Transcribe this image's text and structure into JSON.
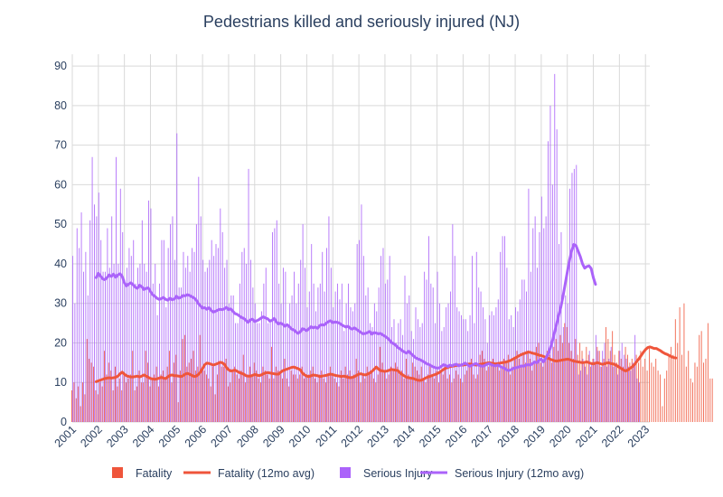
{
  "chart_data": {
    "type": "bar",
    "title": "Pedestrians killed and seriously injured (NJ)",
    "xlabel": "",
    "ylabel": "",
    "x_range": [
      "2001-01",
      "2023-03"
    ],
    "ylim": [
      0,
      93
    ],
    "y_ticks": [
      0,
      10,
      20,
      30,
      40,
      50,
      60,
      70,
      80,
      90
    ],
    "x_ticks": [
      "2001",
      "2002",
      "2003",
      "2004",
      "2005",
      "2006",
      "2007",
      "2008",
      "2009",
      "2010",
      "2011",
      "2012",
      "2013",
      "2014",
      "2015",
      "2016",
      "2017",
      "2018",
      "2019",
      "2020",
      "2021",
      "2022",
      "2023"
    ],
    "grid": true,
    "legend_position": "bottom",
    "series": [
      {
        "name": "Fatality",
        "kind": "bar",
        "color": "#ef553b",
        "start": "2001-01",
        "values": [
          8,
          10,
          6,
          9,
          4,
          10,
          7,
          21,
          16,
          15,
          14,
          8,
          7,
          10,
          9,
          18,
          12,
          15,
          13,
          8,
          14,
          9,
          11,
          8,
          12,
          10,
          11,
          12,
          18,
          8,
          9,
          13,
          10,
          10,
          18,
          15,
          9,
          11,
          12,
          14,
          9,
          12,
          13,
          11,
          14,
          18,
          10,
          15,
          17,
          5,
          13,
          21,
          22,
          14,
          15,
          16,
          18,
          13,
          14,
          22,
          14,
          13,
          12,
          11,
          9,
          14,
          7,
          12,
          15,
          14,
          14,
          16,
          9,
          10,
          13,
          14,
          12,
          11,
          13,
          17,
          10,
          12,
          14,
          12,
          15,
          13,
          11,
          10,
          14,
          13,
          12,
          11,
          19,
          11,
          14,
          13,
          12,
          11,
          16,
          11,
          9,
          13,
          12,
          12,
          11,
          12,
          14,
          11,
          12,
          12,
          13,
          14,
          11,
          10,
          12,
          13,
          11,
          10,
          12,
          14,
          12,
          11,
          10,
          9,
          13,
          11,
          14,
          12,
          13,
          11,
          12,
          16,
          13,
          10,
          12,
          11,
          14,
          12,
          13,
          11,
          10,
          12,
          19,
          15,
          13,
          11,
          12,
          14,
          13,
          15,
          14,
          12,
          13,
          11,
          16,
          12,
          11,
          15,
          14,
          13,
          12,
          14,
          11,
          10,
          12,
          14,
          12,
          11,
          13,
          10,
          13,
          12,
          14,
          11,
          12,
          10,
          11,
          13,
          12,
          11,
          10,
          12,
          13,
          14,
          16,
          12,
          11,
          12,
          17,
          18,
          16,
          13,
          14,
          15,
          16,
          14,
          15,
          13,
          14,
          16,
          15,
          17,
          12,
          14,
          16,
          18,
          16,
          14,
          17,
          15,
          18,
          16,
          13,
          15,
          19,
          20,
          15,
          14,
          16,
          18,
          17,
          15,
          19,
          21,
          18,
          22,
          20,
          25,
          24,
          20,
          18,
          16,
          21,
          17,
          20,
          18,
          15,
          19,
          17,
          14,
          16,
          15,
          19,
          18,
          14,
          16,
          24,
          21,
          18,
          23,
          17,
          15,
          18,
          16,
          14,
          19,
          17,
          15,
          16,
          14,
          17,
          15,
          18,
          14,
          16,
          13,
          19,
          15,
          14,
          16,
          13,
          12,
          4,
          11,
          13,
          17,
          19,
          17,
          26,
          20,
          29,
          17,
          30,
          14,
          18,
          11,
          10,
          15,
          14,
          22,
          23,
          15,
          16,
          25,
          11,
          11
        ]
      },
      {
        "name": "Fatality (12mo avg)",
        "kind": "line",
        "color": "#ef553b",
        "start": "2001-12",
        "values": [
          10.2,
          10.4,
          10.6,
          10.8,
          11.0,
          11.1,
          11.2,
          11.1,
          11.2,
          11.3,
          11.6,
          12.2,
          12.6,
          12.1,
          11.7,
          11.5,
          11.4,
          11.4,
          11.5,
          11.6,
          11.4,
          11.6,
          11.9,
          11.6,
          11.3,
          11.0,
          10.9,
          10.8,
          10.9,
          11.1,
          11.3,
          11.1,
          11.0,
          11.4,
          11.8,
          11.9,
          11.7,
          11.7,
          11.6,
          11.5,
          11.7,
          12.1,
          12.3,
          12.1,
          11.8,
          11.5,
          11.6,
          12.0,
          12.6,
          13.5,
          14.5,
          14.9,
          14.8,
          14.6,
          14.4,
          14.6,
          14.8,
          15.1,
          15.0,
          14.6,
          13.8,
          13.2,
          12.9,
          13.0,
          13.1,
          12.8,
          12.5,
          12.3,
          12.1,
          11.7,
          11.6,
          11.6,
          11.8,
          12.0,
          11.9,
          11.7,
          11.9,
          12.2,
          12.4,
          12.5,
          12.4,
          12.3,
          12.2,
          12.1,
          12.1,
          12.6,
          13.0,
          13.2,
          13.4,
          13.6,
          13.8,
          13.9,
          13.7,
          13.5,
          13.2,
          12.4,
          11.9,
          11.6,
          11.5,
          11.7,
          11.9,
          11.8,
          11.7,
          11.5,
          11.6,
          11.7,
          11.8,
          12.0,
          12.1,
          12.0,
          11.8,
          11.7,
          11.6,
          11.5,
          11.6,
          11.5,
          11.3,
          11.2,
          11.3,
          11.5,
          11.8,
          12.1,
          12.2,
          12.0,
          11.9,
          12.1,
          12.4,
          12.8,
          13.3,
          13.9,
          13.4,
          13.0,
          12.9,
          12.8,
          12.9,
          13.1,
          13.3,
          13.2,
          13.1,
          13.0,
          12.4,
          12.0,
          11.6,
          11.3,
          11.2,
          11.1,
          11.0,
          10.8,
          10.6,
          10.5,
          10.6,
          10.9,
          11.2,
          11.4,
          11.6,
          11.8,
          12.0,
          12.2,
          12.5,
          12.9,
          13.3,
          13.6,
          13.8,
          14.0,
          14.1,
          14.2,
          14.3,
          14.4,
          14.4,
          14.4,
          14.5,
          14.6,
          14.7,
          14.6,
          14.5,
          14.4,
          14.5,
          14.6,
          14.7,
          14.8,
          14.9,
          15.0,
          14.9,
          14.8,
          14.7,
          14.8,
          14.9,
          15.0,
          15.1,
          15.2,
          15.4,
          15.6,
          15.9,
          16.2,
          16.5,
          16.8,
          17.1,
          17.3,
          17.5,
          17.7,
          17.6,
          17.4,
          17.3,
          17.1,
          16.9,
          16.8,
          16.6,
          16.4,
          16.2,
          15.9,
          15.7,
          15.5,
          15.4,
          15.5,
          15.6,
          15.7,
          15.8,
          15.9,
          15.8,
          15.6,
          15.4,
          15.3,
          15.2,
          15.1,
          15.0,
          15.1,
          15.2,
          15.0,
          14.8,
          14.7,
          14.9,
          15.0,
          14.8,
          14.6,
          14.7,
          14.9,
          15.0,
          14.8,
          14.7,
          14.5,
          14.2,
          13.8,
          13.5,
          13.1,
          12.9,
          13.2,
          13.6,
          14.0,
          14.6,
          15.3,
          16.0,
          16.8,
          17.6,
          18.3,
          18.8,
          19.0,
          18.8,
          18.6,
          18.6,
          18.3,
          18.0,
          17.6,
          17.3,
          17.1,
          16.8,
          16.5,
          16.3,
          16.2
        ]
      },
      {
        "name": "Serious Injury",
        "kind": "bar",
        "color": "#ab63fa",
        "start": "2001-01",
        "values": [
          42,
          30,
          49,
          44,
          53,
          38,
          43,
          32,
          51,
          67,
          55,
          52,
          58,
          46,
          38,
          38,
          49,
          39,
          52,
          40,
          67,
          40,
          59,
          48,
          36,
          39,
          44,
          42,
          46,
          35,
          39,
          40,
          51,
          40,
          38,
          56,
          54,
          35,
          40,
          27,
          35,
          46,
          46,
          29,
          44,
          50,
          52,
          41,
          73,
          34,
          34,
          43,
          39,
          42,
          38,
          44,
          43,
          50,
          62,
          52,
          41,
          38,
          39,
          41,
          46,
          42,
          45,
          44,
          54,
          48,
          39,
          41,
          30,
          32,
          32,
          25,
          25,
          35,
          43,
          44,
          40,
          64,
          41,
          34,
          30,
          25,
          25,
          28,
          35,
          39,
          25,
          26,
          48,
          49,
          51,
          35,
          30,
          39,
          38,
          24,
          30,
          32,
          38,
          30,
          35,
          41,
          50,
          39,
          29,
          33,
          45,
          35,
          28,
          34,
          35,
          43,
          33,
          44,
          52,
          39,
          29,
          33,
          35,
          31,
          35,
          23,
          30,
          35,
          29,
          28,
          30,
          45,
          46,
          55,
          42,
          32,
          34,
          25,
          24,
          30,
          28,
          34,
          42,
          44,
          35,
          36,
          42,
          24,
          26,
          20,
          25,
          26,
          22,
          37,
          30,
          32,
          23,
          21,
          29,
          26,
          24,
          25,
          38,
          36,
          47,
          35,
          34,
          25,
          38,
          30,
          23,
          24,
          29,
          30,
          33,
          50,
          42,
          29,
          28,
          27,
          26,
          26,
          23,
          27,
          42,
          25,
          43,
          34,
          33,
          29,
          26,
          20,
          27,
          28,
          27,
          29,
          31,
          43,
          47,
          47,
          39,
          26,
          27,
          24,
          29,
          28,
          31,
          36,
          36,
          33,
          59,
          38,
          49,
          52,
          39,
          48,
          57,
          49,
          52,
          71,
          80,
          60,
          88,
          74,
          45,
          48,
          24,
          32,
          30,
          59,
          63,
          64,
          65,
          12,
          13,
          16,
          14,
          12,
          18,
          15,
          16,
          22,
          18,
          14,
          18,
          20,
          14,
          16,
          19,
          14,
          15,
          12,
          18,
          20,
          17,
          16,
          14,
          13,
          15,
          22,
          11,
          10
        ]
      },
      {
        "name": "Serious Injury (12mo avg)",
        "kind": "line",
        "color": "#ab63fa",
        "start": "2001-12",
        "values": [
          36.5,
          37.6,
          36.9,
          36.2,
          36.0,
          36.5,
          37.2,
          36.8,
          37.4,
          36.6,
          37.2,
          37.5,
          36.8,
          35.2,
          34.4,
          34.9,
          35.2,
          34.7,
          34.1,
          33.8,
          34.6,
          34.2,
          33.5,
          33.8,
          33.9,
          33.0,
          32.2,
          31.8,
          31.3,
          31.0,
          31.2,
          31.5,
          31.0,
          30.8,
          31.3,
          30.9,
          31.1,
          31.8,
          31.3,
          31.5,
          32.0,
          31.9,
          32.2,
          32.0,
          31.7,
          31.4,
          30.9,
          30.0,
          29.4,
          28.8,
          28.9,
          28.5,
          28.9,
          28.2,
          27.8,
          28.0,
          28.3,
          28.5,
          28.4,
          28.6,
          29.0,
          28.4,
          28.6,
          28.0,
          27.4,
          27.2,
          26.8,
          26.4,
          26.2,
          25.7,
          25.2,
          25.8,
          26.0,
          25.4,
          25.6,
          25.9,
          26.3,
          26.6,
          26.3,
          26.1,
          25.5,
          25.7,
          26.2,
          25.3,
          24.8,
          25.0,
          24.7,
          24.2,
          24.6,
          24.1,
          23.5,
          23.3,
          22.8,
          22.4,
          22.8,
          23.6,
          23.4,
          23.1,
          23.6,
          24.1,
          23.8,
          24.0,
          23.7,
          24.4,
          24.6,
          24.5,
          25.0,
          25.4,
          25.6,
          25.1,
          25.3,
          25.2,
          25.0,
          24.6,
          24.3,
          24.0,
          24.2,
          23.7,
          23.5,
          23.8,
          23.4,
          23.0,
          22.6,
          22.3,
          22.4,
          22.6,
          22.9,
          22.2,
          22.6,
          22.5,
          22.3,
          22.4,
          22.0,
          21.7,
          21.3,
          20.8,
          20.1,
          19.8,
          19.4,
          18.8,
          18.5,
          18.0,
          17.7,
          17.4,
          17.9,
          17.3,
          16.8,
          16.3,
          16.0,
          15.8,
          15.5,
          15.2,
          14.8,
          14.6,
          14.3,
          14.0,
          13.8,
          13.6,
          13.7,
          14.1,
          14.5,
          14.3,
          14.0,
          14.4,
          14.2,
          14.5,
          14.6,
          14.2,
          14.4,
          14.6,
          14.9,
          14.5,
          14.1,
          14.3,
          14.6,
          14.8,
          14.4,
          14.2,
          14.1,
          14.3,
          14.6,
          14.8,
          14.5,
          14.3,
          14.2,
          14.4,
          14.1,
          13.8,
          13.6,
          13.2,
          13.0,
          13.2,
          13.5,
          13.7,
          13.8,
          14.0,
          14.2,
          14.1,
          14.4,
          14.5,
          14.4,
          14.8,
          15.2,
          15.0,
          15.6,
          15.9,
          15.2,
          16.0,
          17.0,
          18.4,
          20.2,
          22.4,
          24.6,
          26.9,
          29.0,
          31.7,
          34.8,
          37.9,
          40.9,
          43.3,
          44.9,
          44.6,
          43.2,
          41.8,
          40.0,
          38.9,
          39.3,
          39.5,
          38.8,
          36.5,
          34.8
        ]
      }
    ]
  }
}
